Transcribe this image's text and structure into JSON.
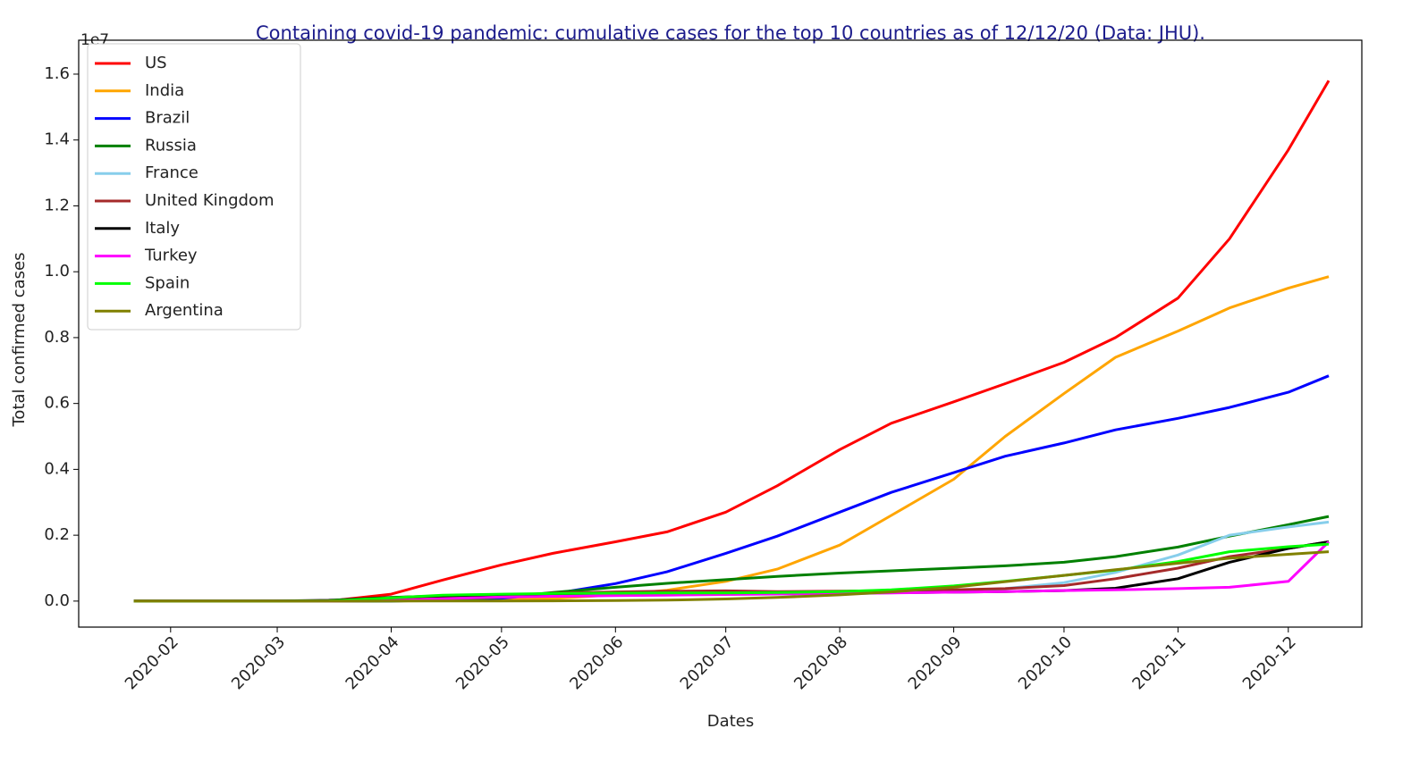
{
  "chart_data": {
    "type": "line",
    "title": "Containing covid-19 pandemic: cumulative cases for the top 10 countries as of 12/12/20 (Data: JHU).",
    "x_label": "Dates",
    "y_label": "Total confirmed cases",
    "y_offset_label": "1e7",
    "legend": "upper left",
    "grid": false,
    "x": [
      "2020-01-22",
      "2020-02-01",
      "2020-02-15",
      "2020-03-01",
      "2020-03-15",
      "2020-04-01",
      "2020-04-15",
      "2020-05-01",
      "2020-05-15",
      "2020-06-01",
      "2020-06-15",
      "2020-07-01",
      "2020-07-15",
      "2020-08-01",
      "2020-08-15",
      "2020-09-01",
      "2020-09-15",
      "2020-10-01",
      "2020-10-15",
      "2020-11-01",
      "2020-11-15",
      "2020-12-01",
      "2020-12-12"
    ],
    "xlim": [
      "2020-01-07",
      "2020-12-21"
    ],
    "xticks": [
      {
        "value": "2020-02-01",
        "label": "2020-02"
      },
      {
        "value": "2020-03-01",
        "label": "2020-03"
      },
      {
        "value": "2020-04-01",
        "label": "2020-04"
      },
      {
        "value": "2020-05-01",
        "label": "2020-05"
      },
      {
        "value": "2020-06-01",
        "label": "2020-06"
      },
      {
        "value": "2020-07-01",
        "label": "2020-07"
      },
      {
        "value": "2020-08-01",
        "label": "2020-08"
      },
      {
        "value": "2020-09-01",
        "label": "2020-09"
      },
      {
        "value": "2020-10-01",
        "label": "2020-10"
      },
      {
        "value": "2020-11-01",
        "label": "2020-11"
      },
      {
        "value": "2020-12-01",
        "label": "2020-12"
      }
    ],
    "ylim": [
      -790000,
      17030000
    ],
    "yticks": [
      {
        "value": 0,
        "label": "0.0"
      },
      {
        "value": 2000000,
        "label": "0.2"
      },
      {
        "value": 4000000,
        "label": "0.4"
      },
      {
        "value": 6000000,
        "label": "0.6"
      },
      {
        "value": 8000000,
        "label": "0.8"
      },
      {
        "value": 10000000,
        "label": "1.0"
      },
      {
        "value": 12000000,
        "label": "1.2"
      },
      {
        "value": 14000000,
        "label": "1.4"
      },
      {
        "value": 16000000,
        "label": "1.6"
      }
    ],
    "series": [
      {
        "name": "US",
        "color": "#ff0000",
        "values": [
          0,
          0,
          0,
          0,
          3000,
          210000,
          640000,
          1100000,
          1450000,
          1800000,
          2100000,
          2700000,
          3500000,
          4600000,
          5400000,
          6050000,
          6600000,
          7250000,
          8000000,
          9200000,
          11000000,
          13700000,
          15800000
        ]
      },
      {
        "name": "India",
        "color": "#ffa500",
        "values": [
          0,
          0,
          0,
          0,
          0,
          2000,
          12000,
          35000,
          80000,
          190000,
          330000,
          600000,
          970000,
          1700000,
          2600000,
          3700000,
          5000000,
          6300000,
          7400000,
          8200000,
          8900000,
          9500000,
          9850000
        ]
      },
      {
        "name": "Brazil",
        "color": "#0000ff",
        "values": [
          0,
          0,
          0,
          0,
          0,
          6000,
          28000,
          90000,
          220000,
          530000,
          890000,
          1450000,
          1970000,
          2700000,
          3300000,
          3900000,
          4400000,
          4800000,
          5200000,
          5550000,
          5880000,
          6340000,
          6840000
        ]
      },
      {
        "name": "Russia",
        "color": "#008000",
        "values": [
          0,
          0,
          0,
          0,
          0,
          3000,
          25000,
          110000,
          260000,
          420000,
          540000,
          650000,
          750000,
          850000,
          920000,
          1000000,
          1070000,
          1180000,
          1350000,
          1640000,
          1970000,
          2320000,
          2570000
        ]
      },
      {
        "name": "France",
        "color": "#87ceeb",
        "values": [
          0,
          0,
          0,
          100,
          5000,
          57000,
          130000,
          167000,
          179000,
          190000,
          195000,
          200000,
          210000,
          220000,
          250000,
          300000,
          380000,
          560000,
          870000,
          1400000,
          2000000,
          2250000,
          2400000
        ]
      },
      {
        "name": "United Kingdom",
        "color": "#a52a2a",
        "values": [
          0,
          0,
          0,
          0,
          1000,
          30000,
          100000,
          170000,
          240000,
          280000,
          300000,
          310000,
          290000,
          300000,
          320000,
          340000,
          380000,
          470000,
          680000,
          1000000,
          1350000,
          1600000,
          1800000
        ]
      },
      {
        "name": "Italy",
        "color": "#000000",
        "values": [
          0,
          0,
          0,
          1000,
          25000,
          110000,
          160000,
          200000,
          220000,
          233000,
          237000,
          240000,
          243000,
          248000,
          254000,
          270000,
          290000,
          320000,
          390000,
          680000,
          1180000,
          1600000,
          1800000
        ]
      },
      {
        "name": "Turkey",
        "color": "#ff00ff",
        "values": [
          0,
          0,
          0,
          0,
          0,
          13000,
          70000,
          120000,
          145000,
          164000,
          180000,
          200000,
          215000,
          230000,
          250000,
          270000,
          290000,
          320000,
          340000,
          380000,
          420000,
          600000,
          1800000
        ]
      },
      {
        "name": "Spain",
        "color": "#00ff00",
        "values": [
          0,
          0,
          0,
          0,
          8000,
          100000,
          180000,
          210000,
          230000,
          240000,
          245000,
          250000,
          260000,
          290000,
          340000,
          460000,
          600000,
          780000,
          940000,
          1200000,
          1500000,
          1650000,
          1730000
        ]
      },
      {
        "name": "Argentina",
        "color": "#808000",
        "values": [
          0,
          0,
          0,
          0,
          0,
          1000,
          3000,
          4000,
          7000,
          17000,
          30000,
          65000,
          110000,
          190000,
          280000,
          420000,
          590000,
          780000,
          950000,
          1150000,
          1300000,
          1420000,
          1500000
        ]
      }
    ]
  }
}
